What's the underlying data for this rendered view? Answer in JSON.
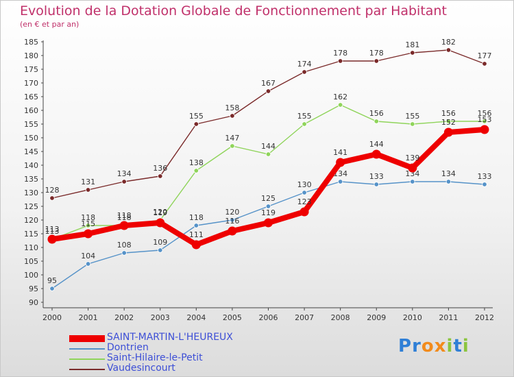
{
  "header": {
    "title": "Evolution de la Dotation Globale de Fonctionnement par Habitant",
    "subtitle": "(en € et par an)"
  },
  "logo": {
    "text": "Proxiti",
    "letters": [
      "P",
      "r",
      "o",
      "x",
      "i",
      "t",
      "i"
    ],
    "colors": [
      "#2f7fd6",
      "#2f7fd6",
      "#f28b1c",
      "#f28b1c",
      "#8bc53f",
      "#2f7fd6",
      "#8bc53f"
    ]
  },
  "chart_data": {
    "type": "line",
    "title": "Evolution de la Dotation Globale de Fonctionnement par Habitant",
    "subtitle": "(en € et par an)",
    "x": [
      2000,
      2001,
      2002,
      2003,
      2004,
      2005,
      2006,
      2007,
      2008,
      2009,
      2010,
      2011,
      2012
    ],
    "ylim": [
      90,
      185
    ],
    "yticks": [
      90,
      95,
      100,
      105,
      110,
      115,
      120,
      125,
      130,
      135,
      140,
      145,
      150,
      155,
      160,
      165,
      170,
      175,
      180,
      185
    ],
    "grid": false,
    "legend_position": "bottom-left",
    "series": [
      {
        "name": "Vaudesincourt",
        "color": "#7a2a2a",
        "values": [
          128,
          131,
          134,
          136,
          155,
          158,
          167,
          174,
          178,
          178,
          181,
          182,
          177
        ]
      },
      {
        "name": "Saint-Hilaire-le-Petit",
        "color": "#8fd45a",
        "values": [
          113,
          118,
          118,
          120,
          138,
          147,
          144,
          155,
          162,
          156,
          155,
          156,
          156
        ]
      },
      {
        "name": "Dontrien",
        "color": "#5592c8",
        "values": [
          95,
          104,
          108,
          109,
          118,
          120,
          125,
          130,
          134,
          133,
          134,
          134,
          133
        ]
      },
      {
        "name": "SAINT-MARTIN-L'HEUREUX",
        "color": "#ee0000",
        "values": [
          113,
          115,
          118,
          119,
          111,
          116,
          119,
          123,
          141,
          144,
          139,
          152,
          153
        ]
      }
    ],
    "legend": [
      "SAINT-MARTIN-L'HEUREUX",
      "Dontrien",
      "Saint-Hilaire-le-Petit",
      "Vaudesincourt"
    ]
  }
}
